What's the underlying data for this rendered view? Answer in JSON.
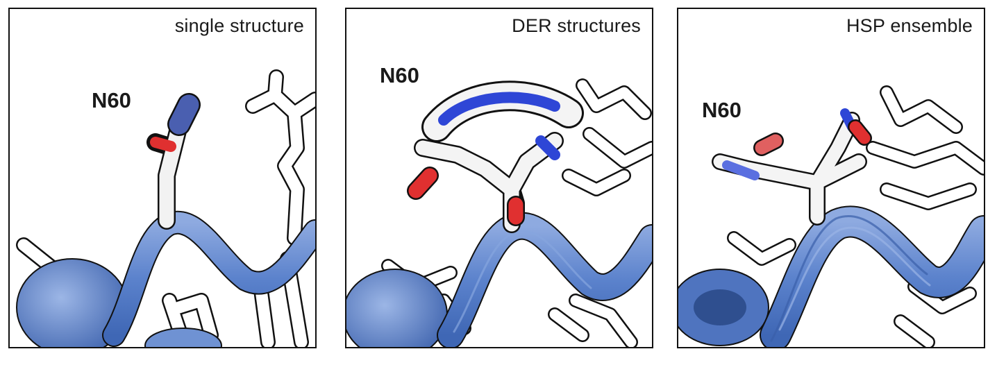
{
  "panels": [
    {
      "caption": "single structure",
      "residue_label": "N60"
    },
    {
      "caption": "DER structures",
      "residue_label": "N60"
    },
    {
      "caption": "HSP ensemble",
      "residue_label": "N60"
    }
  ],
  "colors": {
    "backbone": "#5b82cc",
    "nitrogen": "#2e46d6",
    "oxygen": "#e03030",
    "carbon": "#ffffff",
    "frame": "#111111"
  }
}
